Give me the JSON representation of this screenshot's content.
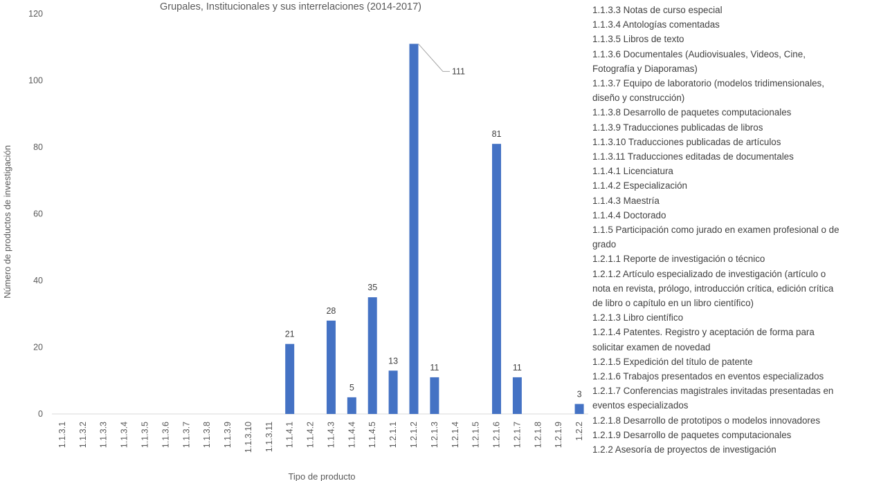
{
  "chart_data": {
    "type": "bar",
    "title": "Grupales, Institucionales y sus interrelaciones (2014-2017)",
    "xlabel": "Tipo de producto",
    "ylabel": "Número de productos de investigación",
    "ylim": [
      0,
      120
    ],
    "yticks": [
      0,
      20,
      40,
      60,
      80,
      100,
      120
    ],
    "grid": false,
    "bar_color": "#4472C4",
    "categories": [
      "1.1.3.1",
      "1.1.3.2",
      "1.1.3.3",
      "1.1.3.4",
      "1.1.3.5",
      "1.1.3.6",
      "1.1.3.7",
      "1.1.3.8",
      "1.1.3.9",
      "1.1.3.10",
      "1.1.3.11",
      "1.1.4.1",
      "1.1.4.2",
      "1.1.4.3",
      "1.1.4.4",
      "1.1.4.5",
      "1.2.1.1",
      "1.2.1.2",
      "1.2.1.3",
      "1.2.1.4",
      "1.2.1.5",
      "1.2.1.6",
      "1.2.1.7",
      "1.2.1.8",
      "1.2.1.9",
      "1.2.2"
    ],
    "values": [
      0,
      0,
      0,
      0,
      0,
      0,
      0,
      0,
      0,
      0,
      0,
      21,
      0,
      28,
      5,
      35,
      13,
      111,
      11,
      0,
      0,
      81,
      11,
      0,
      0,
      3
    ],
    "data_labels": [
      "",
      "",
      "",
      "",
      "",
      "",
      "",
      "",
      "",
      "",
      "",
      "21",
      "",
      "28",
      "5",
      "35",
      "13",
      "111",
      "11",
      "",
      "",
      "81",
      "11",
      "",
      "",
      "3"
    ],
    "legend_position": "right",
    "legend": [
      "1.1.3.3 Notas de curso especial",
      "1.1.3.4 Antologías comentadas",
      "1.1.3.5 Libros de texto",
      "1.1.3.6 Documentales (Audiovisuales, Videos, Cine,",
      "Fotografía y Diaporamas)",
      "1.1.3.7 Equipo de laboratorio (modelos tridimensionales,",
      "diseño y construcción)",
      "1.1.3.8 Desarrollo de paquetes computacionales",
      "1.1.3.9 Traducciones publicadas de libros",
      "1.1.3.10 Traducciones publicadas de artículos",
      "1.1.3.11 Traducciones editadas de documentales",
      "1.1.4.1 Licenciatura",
      "1.1.4.2 Especialización",
      "1.1.4.3 Maestría",
      "1.1.4.4 Doctorado",
      "1.1.5 Participación como jurado en examen profesional o de",
      "grado",
      "1.2.1.1 Reporte de investigación o técnico",
      "1.2.1.2 Artículo especializado de investigación (artículo o",
      "nota en revista, prólogo, introducción crítica, edición crítica",
      "de libro o capítulo en un libro científico)",
      "1.2.1.3 Libro científico",
      "1.2.1.4 Patentes. Registro y aceptación de forma para",
      "solicitar examen de novedad",
      "1.2.1.5 Expedición del título de patente",
      "1.2.1.6 Trabajos presentados en eventos especializados",
      "1.2.1.7 Conferencias magistrales invitadas presentadas en",
      "eventos especializados",
      "1.2.1.8 Desarrollo de prototipos o modelos innovadores",
      "1.2.1.9 Desarrollo de paquetes computacionales",
      "1.2.2 Asesoría de proyectos de investigación"
    ]
  }
}
